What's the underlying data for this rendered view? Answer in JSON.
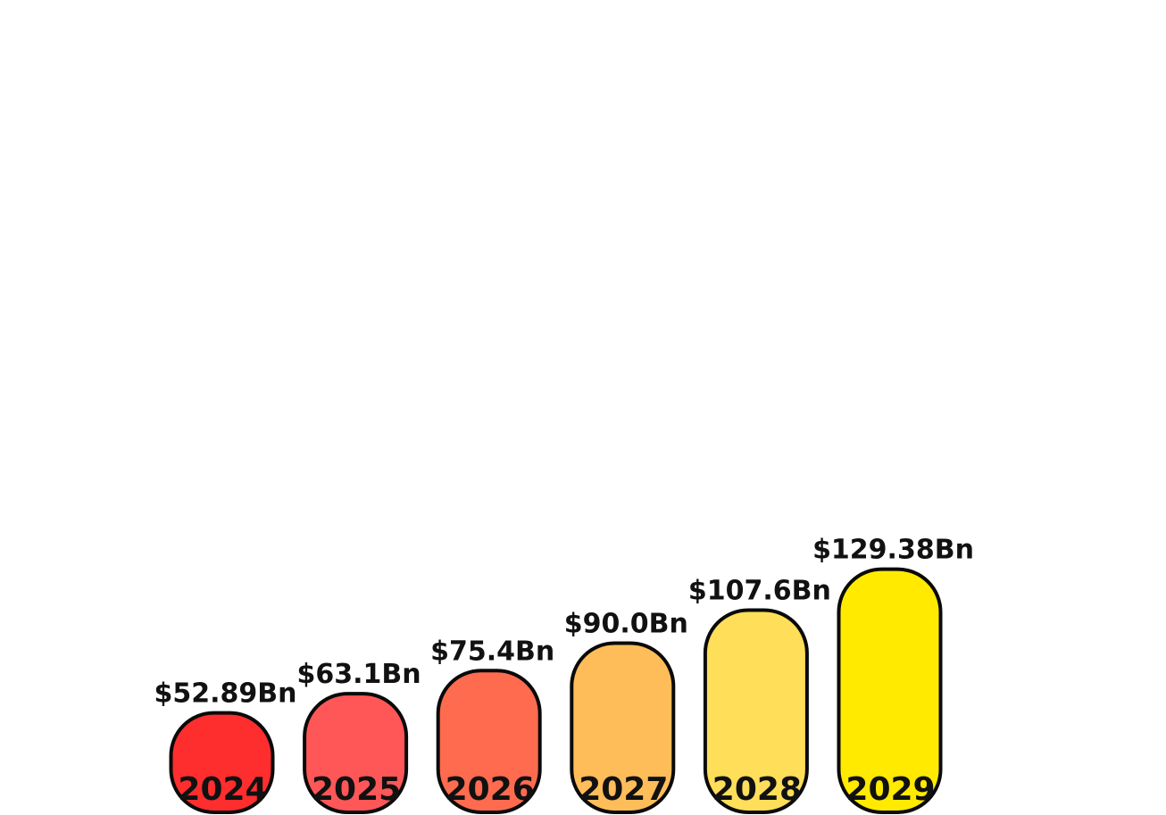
{
  "chart_data": {
    "type": "bar",
    "title": "",
    "xlabel": "",
    "ylabel": "",
    "categories": [
      "2024",
      "2025",
      "2026",
      "2027",
      "2028",
      "2029"
    ],
    "values": [
      52.89,
      63.1,
      75.4,
      90.0,
      107.6,
      129.38
    ],
    "value_labels": [
      "$52.89Bn",
      "$63.1Bn",
      "$75.4Bn",
      "$90.0Bn",
      "$107.6Bn",
      "$129.38Bn"
    ],
    "colors": [
      "#ff2e2e",
      "#ff5757",
      "#ff6b4f",
      "#ffbd59",
      "#ffde59",
      "#ffea00"
    ],
    "ylim": [
      0,
      135
    ],
    "grid": false,
    "legend": "none"
  }
}
